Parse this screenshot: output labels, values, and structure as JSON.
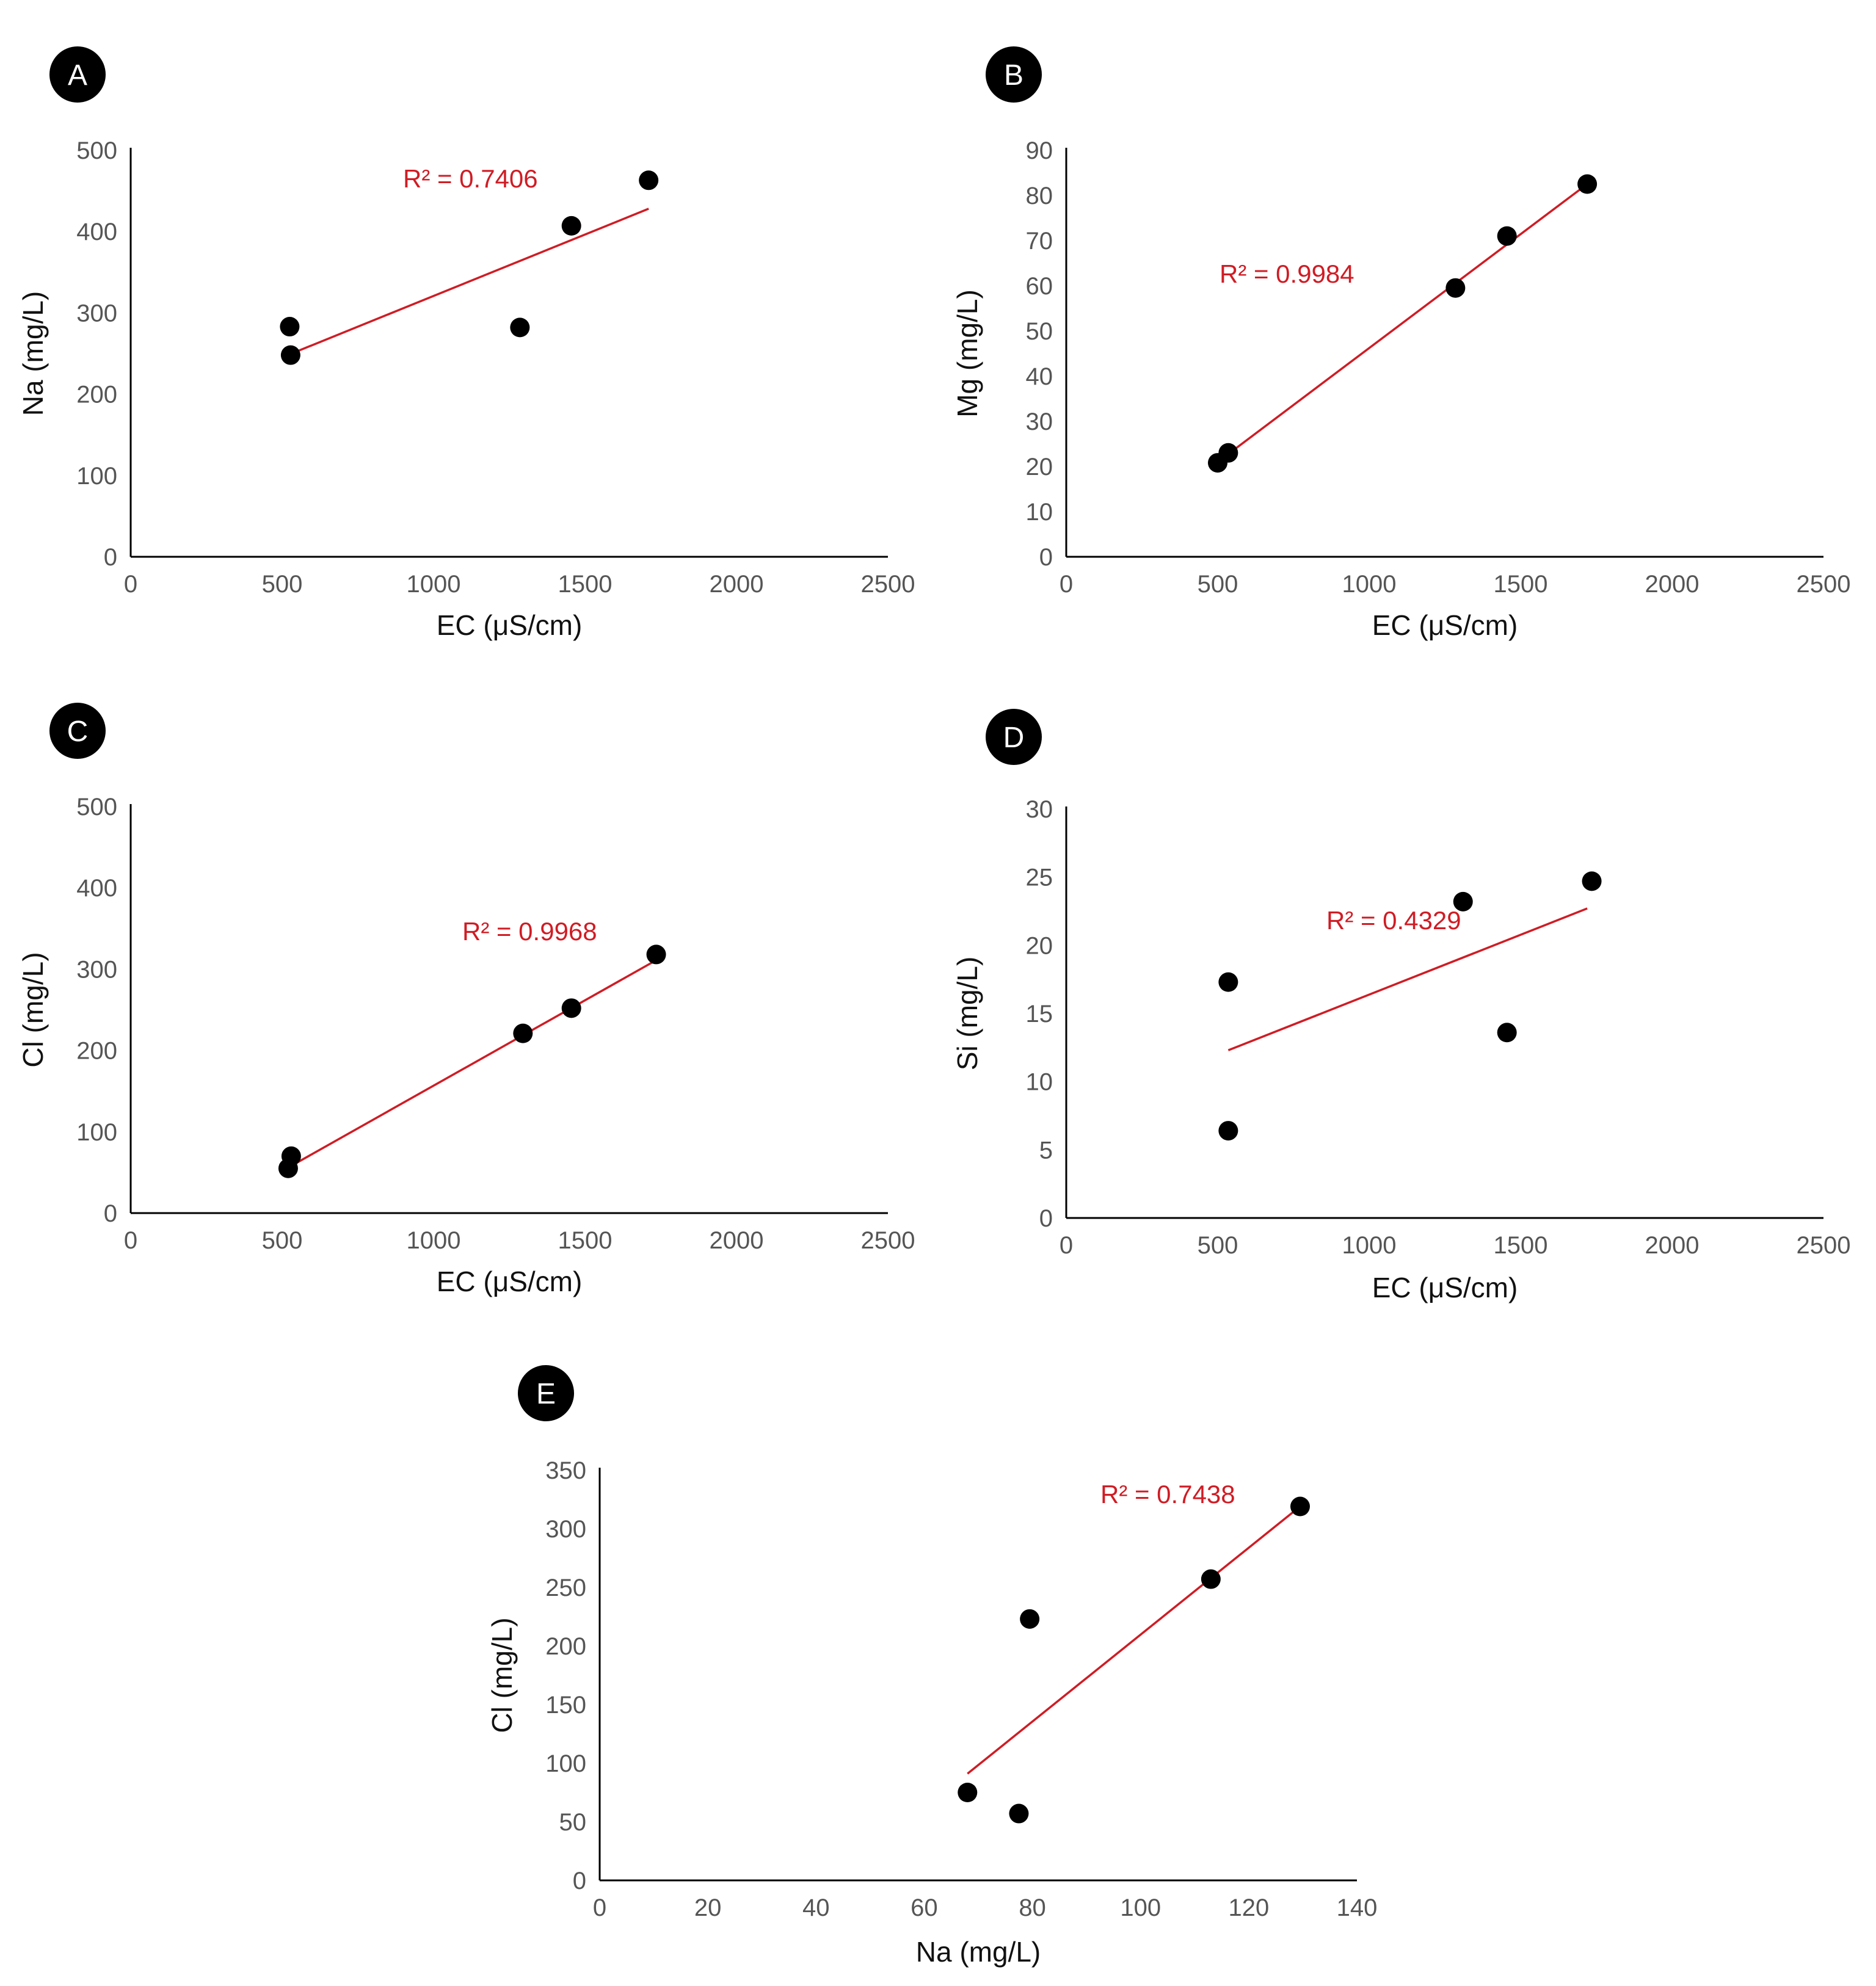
{
  "colors": {
    "points": "#000000",
    "trendline": "#d01c24",
    "axis": "#000000",
    "tick_text": "#555555",
    "r2_text": "#d01c24"
  },
  "chart_data": [
    {
      "panel": "A",
      "type": "scatter",
      "xlabel": "EC (μS/cm)",
      "ylabel": "Na (mg/L)",
      "xlim": [
        0,
        2500
      ],
      "ylim": [
        0,
        500
      ],
      "xticks": [
        0,
        500,
        1000,
        1500,
        2000,
        2500
      ],
      "yticks": [
        0,
        100,
        200,
        300,
        400,
        500
      ],
      "points": [
        {
          "x": 525,
          "y": 283
        },
        {
          "x": 528,
          "y": 248
        },
        {
          "x": 1285,
          "y": 282
        },
        {
          "x": 1455,
          "y": 407
        },
        {
          "x": 1710,
          "y": 463
        }
      ],
      "trendline": {
        "x": [
          525,
          1710
        ],
        "y": [
          249,
          428
        ]
      },
      "r2_label": "R² = 0.7406"
    },
    {
      "panel": "B",
      "type": "scatter",
      "xlabel": "EC (μS/cm)",
      "ylabel": "Mg (mg/L)",
      "xlim": [
        0,
        2500
      ],
      "ylim": [
        0,
        90
      ],
      "xticks": [
        0,
        500,
        1000,
        1500,
        2000,
        2500
      ],
      "yticks": [
        0,
        10,
        20,
        30,
        40,
        50,
        60,
        70,
        80,
        90
      ],
      "points": [
        {
          "x": 500,
          "y": 20.8
        },
        {
          "x": 535,
          "y": 23.0
        },
        {
          "x": 1285,
          "y": 59.5
        },
        {
          "x": 1455,
          "y": 71.0
        },
        {
          "x": 1720,
          "y": 82.5
        }
      ],
      "trendline": {
        "x": [
          540,
          1720
        ],
        "y": [
          23.0,
          82.5
        ]
      },
      "r2_label": "R² = 0.9984"
    },
    {
      "panel": "C",
      "type": "scatter",
      "xlabel": "EC (μS/cm)",
      "ylabel": "Cl (mg/L)",
      "xlim": [
        0,
        2500
      ],
      "ylim": [
        0,
        500
      ],
      "xticks": [
        0,
        500,
        1000,
        1500,
        2000,
        2500
      ],
      "yticks": [
        0,
        100,
        200,
        300,
        400,
        500
      ],
      "points": [
        {
          "x": 520,
          "y": 55
        },
        {
          "x": 530,
          "y": 70
        },
        {
          "x": 1295,
          "y": 221
        },
        {
          "x": 1455,
          "y": 252
        },
        {
          "x": 1735,
          "y": 318
        }
      ],
      "trendline": {
        "x": [
          525,
          1735
        ],
        "y": [
          57,
          311
        ]
      },
      "r2_label": "R² = 0.9968"
    },
    {
      "panel": "D",
      "type": "scatter",
      "xlabel": "EC (μS/cm)",
      "ylabel": "Si (mg/L)",
      "xlim": [
        0,
        2500
      ],
      "ylim": [
        0,
        30
      ],
      "xticks": [
        0,
        500,
        1000,
        1500,
        2000,
        2500
      ],
      "yticks": [
        0,
        5,
        10,
        15,
        20,
        25,
        30
      ],
      "points": [
        {
          "x": 535,
          "y": 17.3
        },
        {
          "x": 535,
          "y": 6.4
        },
        {
          "x": 1310,
          "y": 23.2
        },
        {
          "x": 1455,
          "y": 13.6
        },
        {
          "x": 1735,
          "y": 24.7
        }
      ],
      "trendline": {
        "x": [
          535,
          1720
        ],
        "y": [
          12.3,
          22.7
        ]
      },
      "r2_label": "R² = 0.4329"
    },
    {
      "panel": "E",
      "type": "scatter",
      "xlabel": "Na (mg/L)",
      "ylabel": "Cl (mg/L)",
      "xlim": [
        0,
        140
      ],
      "ylim": [
        0,
        350
      ],
      "xticks": [
        0,
        20,
        40,
        60,
        80,
        100,
        120,
        140
      ],
      "yticks": [
        0,
        50,
        100,
        150,
        200,
        250,
        300,
        350
      ],
      "points": [
        {
          "x": 68,
          "y": 75
        },
        {
          "x": 77.5,
          "y": 57
        },
        {
          "x": 79.5,
          "y": 223
        },
        {
          "x": 113,
          "y": 257
        },
        {
          "x": 129.5,
          "y": 319
        }
      ],
      "trendline": {
        "x": [
          68,
          129.5
        ],
        "y": [
          91,
          319
        ]
      },
      "r2_label": "R² = 0.7438"
    }
  ]
}
